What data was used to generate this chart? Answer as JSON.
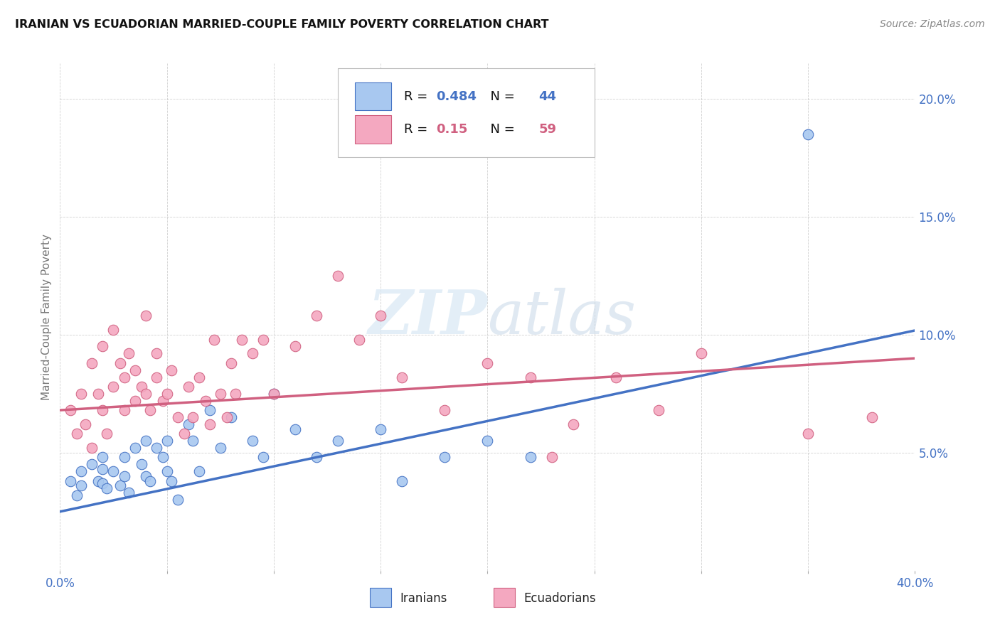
{
  "title": "IRANIAN VS ECUADORIAN MARRIED-COUPLE FAMILY POVERTY CORRELATION CHART",
  "source": "Source: ZipAtlas.com",
  "ylabel": "Married-Couple Family Poverty",
  "xmin": 0.0,
  "xmax": 0.4,
  "ymin": 0.0,
  "ymax": 0.215,
  "yticks": [
    0.05,
    0.1,
    0.15,
    0.2
  ],
  "ytick_labels": [
    "5.0%",
    "10.0%",
    "15.0%",
    "20.0%"
  ],
  "xticks": [
    0.0,
    0.05,
    0.1,
    0.15,
    0.2,
    0.25,
    0.3,
    0.35,
    0.4
  ],
  "iranian_R": 0.484,
  "iranian_N": 44,
  "ecuadorian_R": 0.15,
  "ecuadorian_N": 59,
  "iranian_fill_color": "#A8C8F0",
  "iranian_edge_color": "#4472C4",
  "ecuadorian_fill_color": "#F4A8C0",
  "ecuadorian_edge_color": "#D06080",
  "watermark_part1": "ZIP",
  "watermark_part2": "atlas",
  "background_color": "#FFFFFF",
  "legend_label_iranian": "Iranians",
  "legend_label_ecuadorian": "Ecuadorians",
  "iranian_line_intercept": 0.025,
  "iranian_line_slope": 0.192,
  "ecuadorian_line_intercept": 0.068,
  "ecuadorian_line_slope": 0.055,
  "iranian_x": [
    0.005,
    0.008,
    0.01,
    0.01,
    0.015,
    0.018,
    0.02,
    0.02,
    0.02,
    0.022,
    0.025,
    0.028,
    0.03,
    0.03,
    0.032,
    0.035,
    0.038,
    0.04,
    0.04,
    0.042,
    0.045,
    0.048,
    0.05,
    0.05,
    0.052,
    0.055,
    0.06,
    0.062,
    0.065,
    0.07,
    0.075,
    0.08,
    0.09,
    0.095,
    0.1,
    0.11,
    0.12,
    0.13,
    0.15,
    0.16,
    0.18,
    0.2,
    0.22,
    0.35
  ],
  "iranian_y": [
    0.038,
    0.032,
    0.042,
    0.036,
    0.045,
    0.038,
    0.048,
    0.043,
    0.037,
    0.035,
    0.042,
    0.036,
    0.048,
    0.04,
    0.033,
    0.052,
    0.045,
    0.055,
    0.04,
    0.038,
    0.052,
    0.048,
    0.055,
    0.042,
    0.038,
    0.03,
    0.062,
    0.055,
    0.042,
    0.068,
    0.052,
    0.065,
    0.055,
    0.048,
    0.075,
    0.06,
    0.048,
    0.055,
    0.06,
    0.038,
    0.048,
    0.055,
    0.048,
    0.185
  ],
  "ecuadorian_x": [
    0.005,
    0.008,
    0.01,
    0.012,
    0.015,
    0.015,
    0.018,
    0.02,
    0.02,
    0.022,
    0.025,
    0.025,
    0.028,
    0.03,
    0.03,
    0.032,
    0.035,
    0.035,
    0.038,
    0.04,
    0.04,
    0.042,
    0.045,
    0.045,
    0.048,
    0.05,
    0.052,
    0.055,
    0.058,
    0.06,
    0.062,
    0.065,
    0.068,
    0.07,
    0.072,
    0.075,
    0.078,
    0.08,
    0.082,
    0.085,
    0.09,
    0.095,
    0.1,
    0.11,
    0.12,
    0.13,
    0.14,
    0.15,
    0.16,
    0.18,
    0.2,
    0.22,
    0.23,
    0.24,
    0.26,
    0.28,
    0.3,
    0.35,
    0.38
  ],
  "ecuadorian_y": [
    0.068,
    0.058,
    0.075,
    0.062,
    0.088,
    0.052,
    0.075,
    0.095,
    0.068,
    0.058,
    0.102,
    0.078,
    0.088,
    0.082,
    0.068,
    0.092,
    0.085,
    0.072,
    0.078,
    0.108,
    0.075,
    0.068,
    0.092,
    0.082,
    0.072,
    0.075,
    0.085,
    0.065,
    0.058,
    0.078,
    0.065,
    0.082,
    0.072,
    0.062,
    0.098,
    0.075,
    0.065,
    0.088,
    0.075,
    0.098,
    0.092,
    0.098,
    0.075,
    0.095,
    0.108,
    0.125,
    0.098,
    0.108,
    0.082,
    0.068,
    0.088,
    0.082,
    0.048,
    0.062,
    0.082,
    0.068,
    0.092,
    0.058,
    0.065
  ]
}
